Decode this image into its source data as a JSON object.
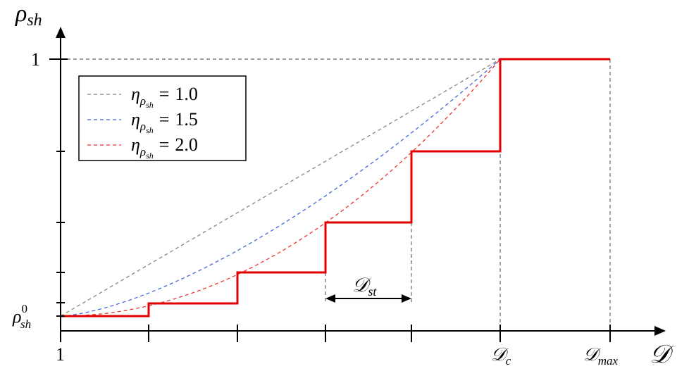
{
  "y_axis": {
    "symbol": "ρ",
    "sub": "sh",
    "ticks": [
      {
        "text": "1"
      },
      {
        "symbol": "ρ",
        "sup": "0",
        "sub": "sh"
      }
    ]
  },
  "x_axis": {
    "symbol": "𝒟",
    "ticks": [
      {
        "text": "1"
      },
      {
        "symbol": "𝒟",
        "sub": "c"
      },
      {
        "symbol": "𝒟",
        "sub": "max"
      }
    ]
  },
  "step_label": {
    "symbol": "𝒟",
    "sub": "st"
  },
  "legend": [
    {
      "symbol": "η",
      "sub": "ρ",
      "subsub": "sh",
      "relation": "=",
      "value": "1.0",
      "color": "#888877"
    },
    {
      "symbol": "η",
      "sub": "ρ",
      "subsub": "sh",
      "relation": "=",
      "value": "1.5",
      "color": "#4466dd"
    },
    {
      "symbol": "η",
      "sub": "ρ",
      "subsub": "sh",
      "relation": "=",
      "value": "2.0",
      "color": "#ee3333"
    }
  ]
}
